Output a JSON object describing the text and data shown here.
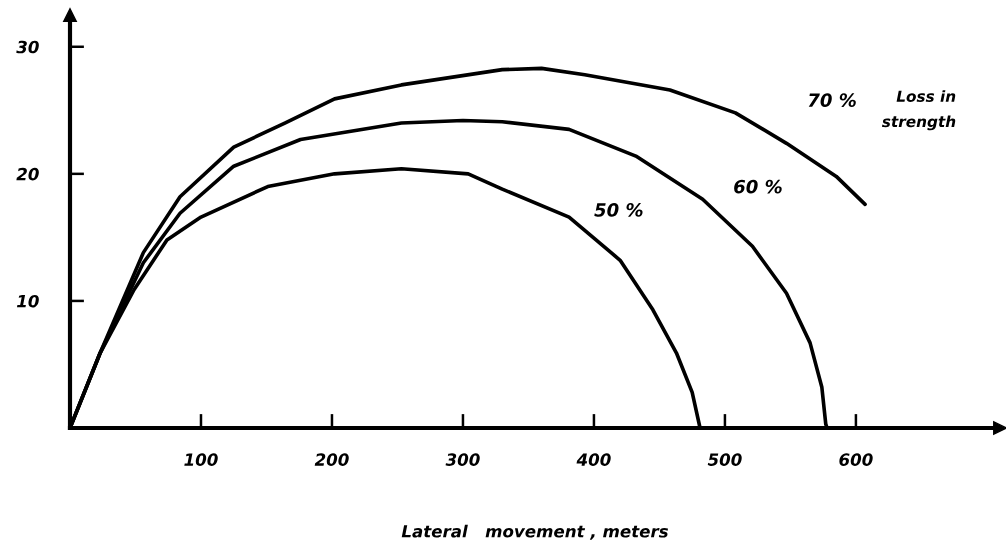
{
  "chart_data": {
    "type": "line",
    "xlabel": "Lateral   movement , meters",
    "xlim": [
      0,
      710
    ],
    "ylim": [
      0,
      32.5
    ],
    "xticks": [
      100,
      200,
      300,
      400,
      500,
      600
    ],
    "yticks": [
      10,
      20,
      30
    ],
    "grid": false,
    "marker": "none",
    "line_style": "solid",
    "series": [
      {
        "name": "70 %",
        "color": "#000000",
        "x": [
          0,
          23,
          56,
          84,
          125,
          164,
          202,
          253,
          330,
          360,
          393,
          458,
          508,
          547,
          585,
          607
        ],
        "values": [
          0,
          5.9,
          13.8,
          18.2,
          22.1,
          24.0,
          25.9,
          27.0,
          28.2,
          28.3,
          27.8,
          26.6,
          24.8,
          22.4,
          19.8,
          17.6
        ]
      },
      {
        "name": "60 %",
        "color": "#000000",
        "x": [
          0,
          23,
          56,
          84,
          125,
          176,
          253,
          300,
          330,
          381,
          432,
          483,
          521,
          547,
          565,
          574,
          577,
          578
        ],
        "values": [
          0,
          5.9,
          13.0,
          16.9,
          20.6,
          22.7,
          24.0,
          24.2,
          24.1,
          23.5,
          21.4,
          18.0,
          14.3,
          10.6,
          6.7,
          3.2,
          0.3,
          0
        ]
      },
      {
        "name": "50 %",
        "color": "#000000",
        "x": [
          0,
          23,
          49,
          74,
          100,
          151,
          202,
          253,
          304,
          330,
          381,
          420,
          445,
          463,
          475,
          481
        ],
        "values": [
          0,
          5.9,
          10.9,
          14.8,
          16.6,
          19.0,
          20.0,
          20.4,
          20.0,
          18.8,
          16.6,
          13.2,
          9.3,
          5.9,
          2.8,
          0
        ]
      }
    ],
    "annotations": [
      "Loss in strength"
    ]
  }
}
